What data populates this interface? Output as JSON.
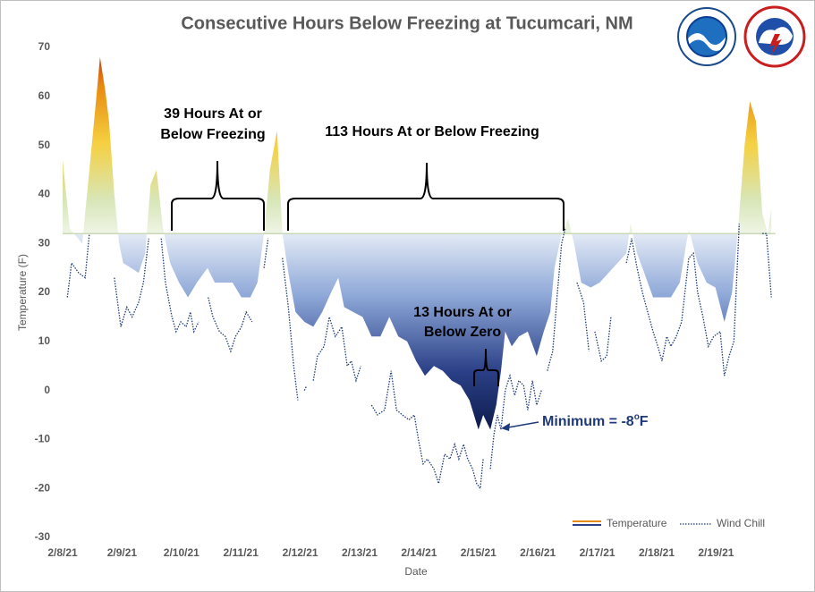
{
  "chart_data": {
    "type": "area_line",
    "title": "Consecutive Hours Below Freezing at Tucumcari, NM",
    "x_label": "Date",
    "y_label": "Temperature (F)",
    "xlim": [
      0,
      12
    ],
    "xticks": [
      {
        "value": 0,
        "label": "2/8/21"
      },
      {
        "value": 1,
        "label": "2/9/21"
      },
      {
        "value": 2,
        "label": "2/10/21"
      },
      {
        "value": 3,
        "label": "2/11/21"
      },
      {
        "value": 4,
        "label": "2/12/21"
      },
      {
        "value": 5,
        "label": "2/13/21"
      },
      {
        "value": 6,
        "label": "2/14/21"
      },
      {
        "value": 7,
        "label": "2/15/21"
      },
      {
        "value": 8,
        "label": "2/16/21"
      },
      {
        "value": 9,
        "label": "2/17/21"
      },
      {
        "value": 10,
        "label": "2/18/21"
      },
      {
        "value": 11,
        "label": "2/19/21"
      }
    ],
    "ylim": [
      -30,
      70
    ],
    "yticks": [
      -30,
      -20,
      -10,
      0,
      10,
      20,
      30,
      40,
      50,
      60,
      70
    ],
    "baseline": 32,
    "series": [
      {
        "name": "Temperature",
        "x": [
          0,
          0.12,
          0.33,
          0.45,
          0.57,
          0.63,
          0.72,
          0.78,
          0.87,
          0.95,
          1.02,
          1.28,
          1.39,
          1.48,
          1.58,
          1.69,
          1.81,
          1.96,
          2.11,
          2.26,
          2.44,
          2.56,
          2.86,
          3.01,
          3.16,
          3.28,
          3.39,
          3.49,
          3.61,
          3.7,
          3.8,
          3.92,
          4.07,
          4.22,
          4.37,
          4.52,
          4.64,
          4.74,
          4.89,
          5.05,
          5.2,
          5.35,
          5.5,
          5.65,
          5.8,
          5.95,
          6.1,
          6.25,
          6.4,
          6.55,
          6.7,
          6.85,
          7,
          7.08,
          7.2,
          7.3,
          7.38,
          7.45,
          7.56,
          7.68,
          7.83,
          7.98,
          8.1,
          8.21,
          8.28,
          8.4,
          8.51,
          8.61,
          8.73,
          8.89,
          9.04,
          9.19,
          9.34,
          9.49,
          9.56,
          9.67,
          9.79,
          9.94,
          10.24,
          10.39,
          10.54,
          10.69,
          10.84,
          10.99,
          11.14,
          11.27,
          11.37,
          11.48,
          11.57,
          11.67,
          11.78,
          11.87,
          11.93
        ],
        "values": [
          47,
          33,
          30,
          45,
          60,
          68,
          61,
          55,
          40,
          30,
          26,
          24,
          28,
          42,
          45,
          33,
          26,
          22,
          19,
          22,
          25,
          22,
          22,
          19,
          19,
          22,
          32,
          45,
          53,
          32,
          24,
          16,
          14,
          13,
          16,
          20,
          23,
          17,
          16,
          15,
          11,
          11,
          15,
          11,
          10,
          6,
          3,
          5,
          4,
          2,
          1,
          -2,
          -8,
          -5,
          -8,
          -3,
          4,
          12,
          9,
          11,
          12,
          7,
          12,
          16,
          25,
          32,
          35,
          30,
          22,
          21,
          22,
          24,
          26,
          28,
          34,
          28,
          24,
          19,
          19,
          22,
          33,
          26,
          22,
          21,
          14,
          20,
          33,
          50,
          59,
          55,
          36,
          32,
          37
        ]
      },
      {
        "name": "Wind Chill",
        "color": "#1f3a7a",
        "x": [
          0.08,
          0.15,
          0.27,
          0.38,
          0.45,
          0.6,
          0.87,
          0.98,
          1.08,
          1.17,
          1.28,
          1.36,
          1.45,
          1.55,
          1.66,
          1.73,
          1.84,
          1.91,
          1.99,
          2.08,
          2.15,
          2.21,
          2.29,
          2.37,
          2.45,
          2.53,
          2.64,
          2.74,
          2.83,
          2.91,
          3.01,
          3.09,
          3.19,
          3.28,
          3.39,
          3.46,
          3.55,
          3.7,
          3.8,
          3.89,
          3.96,
          4.0,
          4.07,
          4.11,
          4.16,
          4.22,
          4.29,
          4.4,
          4.49,
          4.59,
          4.7,
          4.79,
          4.86,
          4.94,
          5.02,
          5.1,
          5.2,
          5.3,
          5.42,
          5.53,
          5.62,
          5.72,
          5.83,
          5.92,
          5.99,
          6.07,
          6.14,
          6.25,
          6.33,
          6.43,
          6.52,
          6.6,
          6.67,
          6.75,
          6.82,
          6.9,
          6.97,
          7.03,
          7.08,
          7.13,
          7.2,
          7.26,
          7.32,
          7.38,
          7.45,
          7.53,
          7.61,
          7.68,
          7.76,
          7.83,
          7.91,
          7.98,
          8.06,
          8.1,
          8.16,
          8.25,
          8.33,
          8.4,
          8.46,
          8.6,
          8.66,
          8.77,
          8.86,
          8.9,
          8.96,
          9.07,
          9.16,
          9.23,
          9.3,
          9.49,
          9.58,
          9.67,
          9.76,
          9.85,
          9.94,
          10.02,
          10.09,
          10.17,
          10.24,
          10.33,
          10.42,
          10.54,
          10.62,
          10.69,
          10.78,
          10.87,
          10.96,
          11.07,
          11.14,
          11.22,
          11.3,
          11.39,
          11.6,
          11.78,
          11.85,
          11.93
        ],
        "values": [
          19,
          26,
          24,
          23,
          32,
          null,
          23,
          13,
          17,
          15,
          18,
          22,
          31,
          null,
          31,
          22,
          15,
          12,
          14,
          13,
          16,
          12,
          14,
          null,
          19,
          15,
          12,
          11,
          8,
          11,
          13,
          16,
          14,
          null,
          25,
          31,
          null,
          27,
          17,
          5,
          -2,
          null,
          0,
          1,
          null,
          2,
          7,
          9,
          15,
          11,
          13,
          5,
          6,
          2,
          5,
          null,
          -3,
          -5,
          -4,
          4,
          -4,
          -5,
          -6,
          -5,
          -10,
          -15,
          -14,
          -16,
          -19,
          -13,
          -14,
          -11,
          -14,
          -11,
          -14,
          -16,
          -19,
          -20,
          -14,
          null,
          -16,
          -9,
          -5,
          -8,
          0,
          3,
          -1,
          2,
          1,
          -4,
          2,
          -3,
          0,
          null,
          4,
          8,
          20,
          30,
          33,
          null,
          22,
          18,
          8,
          null,
          12,
          6,
          7,
          15,
          null,
          26,
          31,
          25,
          20,
          16,
          12,
          9,
          6,
          11,
          9,
          11,
          14,
          27,
          28,
          20,
          15,
          9,
          11,
          12,
          3,
          7,
          10,
          34,
          null,
          32,
          32,
          19
        ]
      }
    ],
    "annotations": [
      {
        "lines": [
          "39 Hours At or",
          "Below Freezing"
        ]
      },
      {
        "lines": [
          "113 Hours At or Below Freezing"
        ]
      },
      {
        "lines": [
          "13 Hours At or",
          "Below Zero"
        ]
      },
      {
        "lines": [
          "Minimum = -8",
          "o",
          "F"
        ]
      }
    ]
  }
}
